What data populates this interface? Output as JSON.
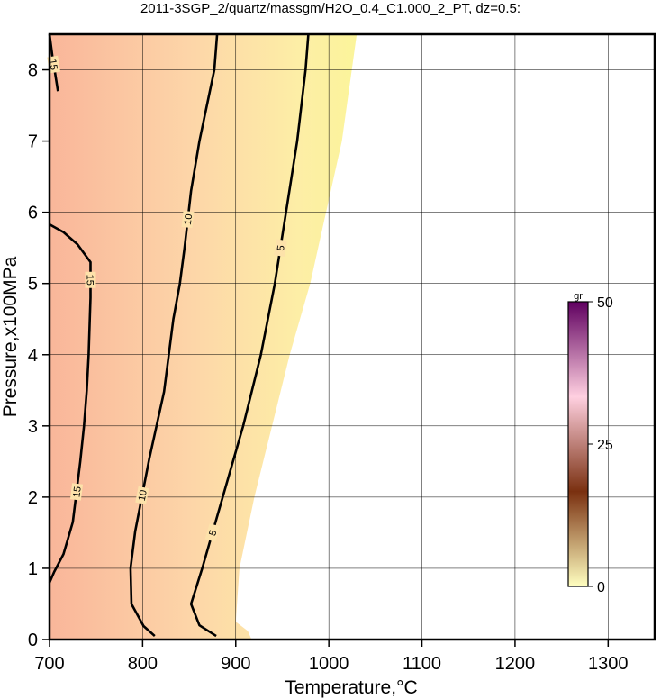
{
  "chart_data": {
    "type": "contour",
    "title": "2011-3SGP_2/quartz/massgm/H2O_0.4_C1.000_2_PT, dz=0.5:",
    "x_label": "Temperature,°C",
    "y_label": "Pressure,x100MPa",
    "xlim": [
      700,
      1350
    ],
    "ylim": [
      0,
      8.5
    ],
    "xticks": [
      700,
      800,
      900,
      1000,
      1100,
      1200,
      1300
    ],
    "yticks": [
      0,
      1,
      2,
      3,
      4,
      5,
      6,
      7,
      8
    ],
    "grid": true,
    "series": [
      {
        "name": "15",
        "color": "#000000",
        "x": [
          700,
          703,
          706,
          709
        ],
        "y": [
          8.5,
          8.2,
          7.95,
          7.7
        ]
      },
      {
        "name": "15",
        "color": "#000000",
        "x": [
          700,
          715,
          730,
          744,
          744,
          742,
          740,
          737,
          733,
          725,
          715,
          705,
          700
        ],
        "y": [
          5.83,
          5.72,
          5.55,
          5.3,
          4.8,
          4.0,
          3.5,
          3.0,
          2.5,
          1.65,
          1.2,
          0.95,
          0.8
        ]
      },
      {
        "name": "10",
        "color": "#000000",
        "x": [
          880,
          877,
          869,
          861,
          852,
          845,
          840,
          833,
          823,
          807,
          792,
          787,
          788,
          801,
          813
        ],
        "y": [
          8.5,
          8.0,
          7.5,
          7.0,
          6.3,
          5.5,
          5.0,
          4.5,
          3.48,
          2.53,
          1.52,
          1.0,
          0.5,
          0.19,
          0.05
        ]
      },
      {
        "name": "5",
        "color": "#000000",
        "x": [
          978,
          975,
          966,
          954,
          942,
          927,
          908,
          886,
          864,
          852,
          861,
          879
        ],
        "y": [
          8.5,
          8.0,
          7.0,
          6.0,
          5.0,
          4.0,
          3.0,
          2.0,
          1.0,
          0.5,
          0.2,
          0.05
        ]
      }
    ],
    "field_boundary": {
      "x": [
        1030,
        1014,
        997,
        980,
        958,
        939,
        920,
        904,
        900,
        913,
        917
      ],
      "y": [
        8.5,
        7.0,
        6.0,
        5.0,
        4.0,
        3.0,
        2.0,
        1.0,
        0.25,
        0.12,
        0
      ]
    },
    "colorbar": {
      "label": "gr",
      "clim": [
        0,
        50
      ],
      "ticks": [
        0,
        25,
        50
      ],
      "colors": [
        "#ffffc0",
        "#7a3010",
        "#ffd0e0",
        "#600060"
      ]
    }
  }
}
